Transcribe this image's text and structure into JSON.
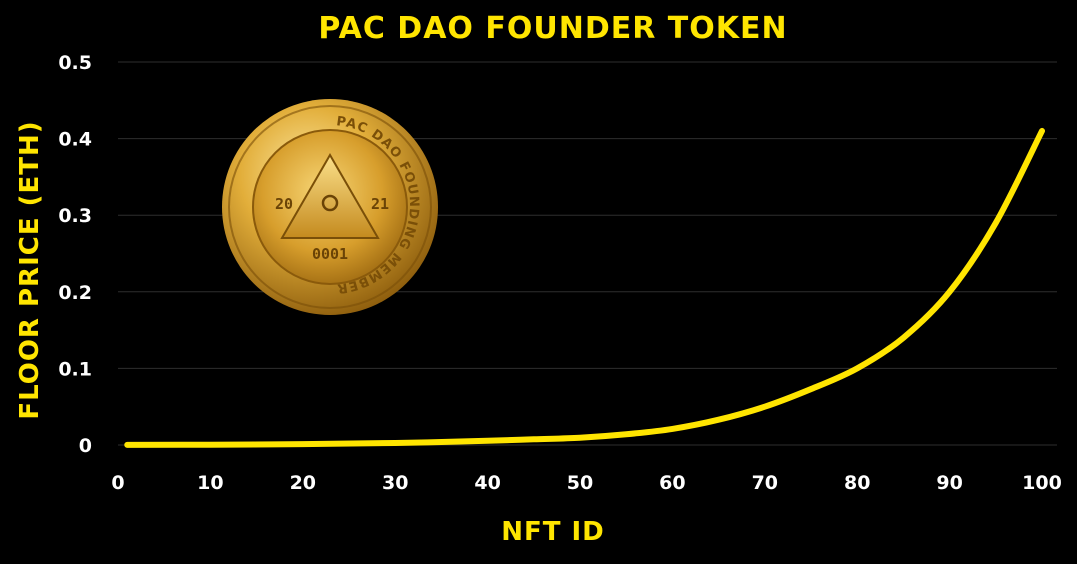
{
  "chart_data": {
    "type": "line",
    "title": "PAC DAO FOUNDER TOKEN",
    "xlabel": "NFT ID",
    "ylabel": "FLOOR PRICE (ETH)",
    "xlim": [
      0,
      100
    ],
    "ylim": [
      0,
      0.5
    ],
    "x_ticks": [
      "0",
      "10",
      "20",
      "30",
      "40",
      "50",
      "60",
      "70",
      "80",
      "90",
      "100"
    ],
    "y_ticks": [
      "0",
      "0.1",
      "0.2",
      "0.3",
      "0.4",
      "0.5"
    ],
    "grid": "horizontal",
    "line_color": "#FFE500",
    "series": [
      {
        "x": [
          1,
          10,
          20,
          30,
          40,
          45,
          50,
          55,
          60,
          65,
          70,
          75,
          80,
          85,
          90,
          95,
          100
        ],
        "y": [
          0.0001,
          0.0004,
          0.0011,
          0.0026,
          0.0055,
          0.0075,
          0.0095,
          0.014,
          0.021,
          0.033,
          0.05,
          0.073,
          0.1,
          0.14,
          0.2,
          0.29,
          0.41
        ]
      }
    ]
  },
  "coin": {
    "ring_text": "PAC DAO FOUNDING MEMBER",
    "year_left": "20",
    "year_right": "21",
    "number": "0001",
    "gold_light": "#F6D36B",
    "gold_dark": "#8A5A0B"
  }
}
